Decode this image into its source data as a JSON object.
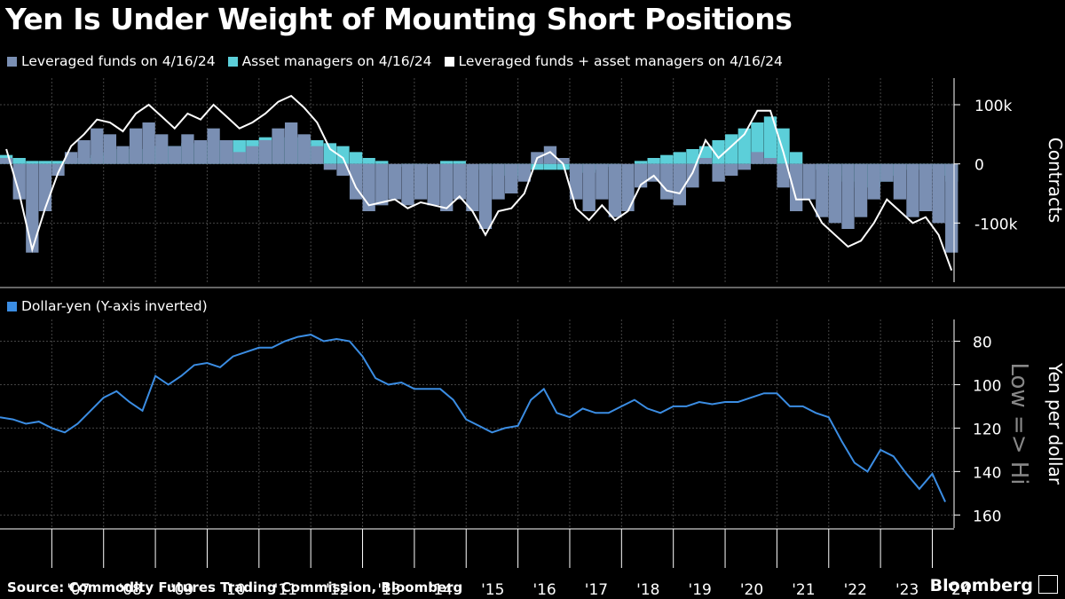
{
  "title": "Yen Is Under Weight of Mounting Short Positions",
  "source": "Source: Commodity Futures Trading Commission, Bloomberg",
  "brand": "Bloomberg",
  "colors": {
    "background": "#000000",
    "leveraged": "#7a8fb3",
    "asset": "#5ccfd9",
    "combined": "#ffffff",
    "usdjpy": "#3b8de3",
    "grid": "#444444"
  },
  "chart_data": [
    {
      "type": "area",
      "legend": [
        {
          "name": "Leveraged funds on 4/16/24",
          "color": "#7a8fb3"
        },
        {
          "name": "Asset managers on 4/16/24",
          "color": "#5ccfd9"
        },
        {
          "name": "Leveraged funds + asset managers on 4/16/24",
          "color": "#ffffff"
        }
      ],
      "ylabel": "Contracts",
      "ylim": [
        -200000,
        145000
      ],
      "yticks": [
        {
          "value": 100000,
          "label": "100k"
        },
        {
          "value": 0,
          "label": "0"
        },
        {
          "value": -100000,
          "label": "-100k"
        }
      ],
      "x": [
        2006.0,
        2006.25,
        2006.5,
        2006.75,
        2007.0,
        2007.25,
        2007.5,
        2007.75,
        2008.0,
        2008.25,
        2008.5,
        2008.75,
        2009.0,
        2009.25,
        2009.5,
        2009.75,
        2010.0,
        2010.25,
        2010.5,
        2010.75,
        2011.0,
        2011.25,
        2011.5,
        2011.75,
        2012.0,
        2012.25,
        2012.5,
        2012.75,
        2013.0,
        2013.25,
        2013.5,
        2013.75,
        2014.0,
        2014.25,
        2014.5,
        2014.75,
        2015.0,
        2015.25,
        2015.5,
        2015.75,
        2016.0,
        2016.25,
        2016.5,
        2016.75,
        2017.0,
        2017.25,
        2017.5,
        2017.75,
        2018.0,
        2018.25,
        2018.5,
        2018.75,
        2019.0,
        2019.25,
        2019.5,
        2019.75,
        2020.0,
        2020.25,
        2020.5,
        2020.75,
        2021.0,
        2021.25,
        2021.5,
        2021.75,
        2022.0,
        2022.25,
        2022.5,
        2022.75,
        2023.0,
        2023.25,
        2023.5,
        2023.75,
        2024.0,
        2024.25
      ],
      "series": [
        {
          "name": "Leveraged funds on 4/16/24",
          "values": [
            10000,
            -60000,
            -150000,
            -80000,
            -20000,
            20000,
            40000,
            60000,
            50000,
            30000,
            60000,
            70000,
            50000,
            30000,
            50000,
            40000,
            60000,
            40000,
            20000,
            30000,
            40000,
            60000,
            70000,
            50000,
            30000,
            -10000,
            -20000,
            -60000,
            -80000,
            -70000,
            -60000,
            -70000,
            -60000,
            -70000,
            -80000,
            -60000,
            -80000,
            -110000,
            -60000,
            -50000,
            -30000,
            20000,
            30000,
            10000,
            -60000,
            -80000,
            -60000,
            -90000,
            -80000,
            -40000,
            -30000,
            -60000,
            -70000,
            -40000,
            10000,
            -30000,
            -20000,
            -10000,
            20000,
            10000,
            -40000,
            -80000,
            -60000,
            -90000,
            -100000,
            -110000,
            -90000,
            -60000,
            -30000,
            -60000,
            -90000,
            -80000,
            -100000,
            -150000
          ]
        },
        {
          "name": "Asset managers on 4/16/24",
          "values": [
            15000,
            10000,
            5000,
            5000,
            5000,
            10000,
            10000,
            15000,
            20000,
            25000,
            25000,
            30000,
            30000,
            30000,
            35000,
            35000,
            40000,
            40000,
            40000,
            40000,
            45000,
            45000,
            45000,
            45000,
            40000,
            35000,
            30000,
            20000,
            10000,
            5000,
            0,
            -5000,
            -5000,
            0,
            5000,
            5000,
            0,
            -10000,
            -20000,
            -25000,
            -20000,
            -10000,
            -10000,
            -10000,
            -15000,
            -15000,
            -10000,
            -5000,
            0,
            5000,
            10000,
            15000,
            20000,
            25000,
            30000,
            40000,
            50000,
            60000,
            70000,
            80000,
            60000,
            20000,
            0,
            -10000,
            -20000,
            -30000,
            -40000,
            -40000,
            -30000,
            -20000,
            -10000,
            -10000,
            -20000,
            -30000
          ]
        },
        {
          "name": "Leveraged funds + asset managers on 4/16/24",
          "values": [
            25000,
            -50000,
            -145000,
            -75000,
            -15000,
            30000,
            50000,
            75000,
            70000,
            55000,
            85000,
            100000,
            80000,
            60000,
            85000,
            75000,
            100000,
            80000,
            60000,
            70000,
            85000,
            105000,
            115000,
            95000,
            70000,
            25000,
            10000,
            -40000,
            -70000,
            -65000,
            -60000,
            -75000,
            -65000,
            -70000,
            -75000,
            -55000,
            -80000,
            -120000,
            -80000,
            -75000,
            -50000,
            10000,
            20000,
            0,
            -75000,
            -95000,
            -70000,
            -95000,
            -80000,
            -35000,
            -20000,
            -45000,
            -50000,
            -15000,
            40000,
            10000,
            30000,
            50000,
            90000,
            90000,
            20000,
            -60000,
            -60000,
            -100000,
            -120000,
            -140000,
            -130000,
            -100000,
            -60000,
            -80000,
            -100000,
            -90000,
            -120000,
            -180000
          ]
        }
      ]
    },
    {
      "type": "line",
      "legend": [
        {
          "name": "Dollar-yen (Y-axis inverted)",
          "color": "#3b8de3"
        }
      ],
      "ylabel": "Yen per dollar",
      "annotation": "Low => Hi",
      "y_inverted": true,
      "ylim": [
        70,
        166
      ],
      "yticks": [
        {
          "value": 80,
          "label": "80"
        },
        {
          "value": 100,
          "label": "100"
        },
        {
          "value": 120,
          "label": "120"
        },
        {
          "value": 140,
          "label": "140"
        },
        {
          "value": 160,
          "label": "160"
        }
      ],
      "x": [
        2006.0,
        2006.25,
        2006.5,
        2006.75,
        2007.0,
        2007.25,
        2007.5,
        2007.75,
        2008.0,
        2008.25,
        2008.5,
        2008.75,
        2009.0,
        2009.25,
        2009.5,
        2009.75,
        2010.0,
        2010.25,
        2010.5,
        2010.75,
        2011.0,
        2011.25,
        2011.5,
        2011.75,
        2012.0,
        2012.25,
        2012.5,
        2012.75,
        2013.0,
        2013.25,
        2013.5,
        2013.75,
        2014.0,
        2014.25,
        2014.5,
        2014.75,
        2015.0,
        2015.25,
        2015.5,
        2015.75,
        2016.0,
        2016.25,
        2016.5,
        2016.75,
        2017.0,
        2017.25,
        2017.5,
        2017.75,
        2018.0,
        2018.25,
        2018.5,
        2018.75,
        2019.0,
        2019.25,
        2019.5,
        2019.75,
        2020.0,
        2020.25,
        2020.5,
        2020.75,
        2021.0,
        2021.25,
        2021.5,
        2021.75,
        2022.0,
        2022.25,
        2022.5,
        2022.75,
        2023.0,
        2023.25,
        2023.5,
        2023.75,
        2024.0,
        2024.25
      ],
      "values": [
        115,
        116,
        118,
        117,
        120,
        122,
        118,
        112,
        106,
        103,
        108,
        112,
        96,
        100,
        96,
        91,
        90,
        92,
        87,
        85,
        83,
        83,
        80,
        78,
        77,
        80,
        79,
        80,
        87,
        97,
        100,
        99,
        102,
        102,
        102,
        107,
        116,
        119,
        122,
        120,
        119,
        107,
        102,
        113,
        115,
        111,
        113,
        113,
        110,
        107,
        111,
        113,
        110,
        110,
        108,
        109,
        108,
        108,
        106,
        104,
        104,
        110,
        110,
        113,
        115,
        126,
        136,
        140,
        130,
        133,
        141,
        148,
        141,
        154
      ]
    }
  ],
  "x_axis": {
    "ticks": [
      "'07",
      "'08",
      "'09",
      "'10",
      "'11",
      "'12",
      "'13",
      "'14",
      "'15",
      "'16",
      "'17",
      "'18",
      "'19",
      "'20",
      "'21",
      "'22",
      "'23",
      "'24"
    ]
  }
}
